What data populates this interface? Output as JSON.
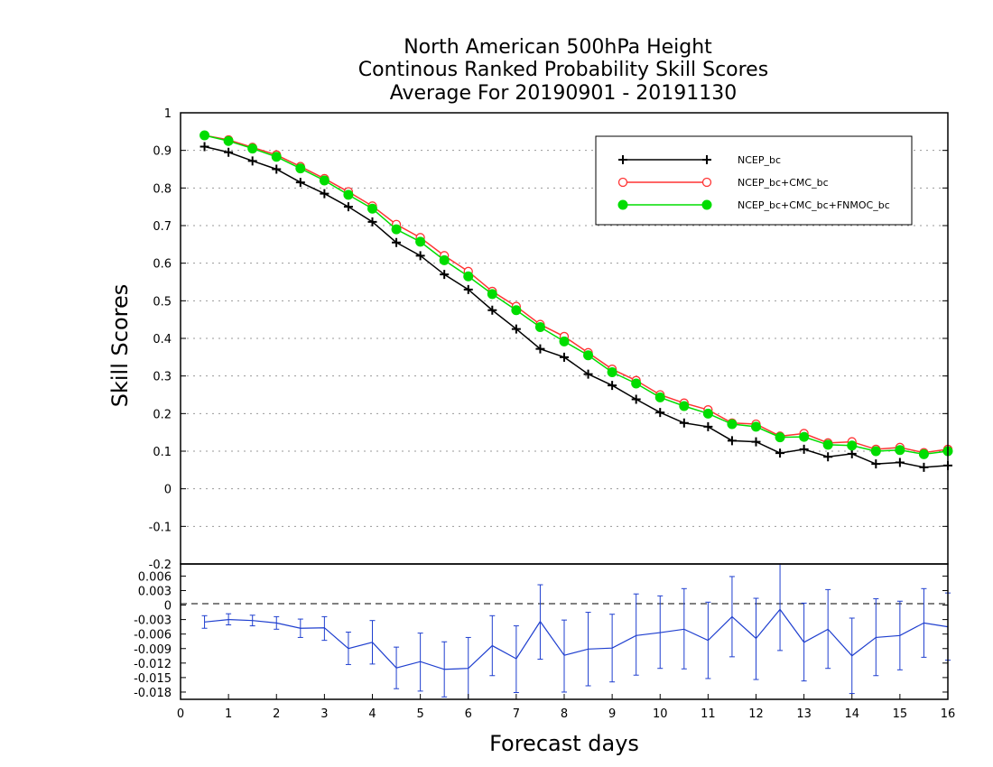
{
  "titles": [
    "North American 500hPa Height",
    "Continous Ranked Probability Skill Scores",
    "Average For 20190901 - 20191130"
  ],
  "chart_data": [
    {
      "type": "line",
      "ylabel": "Skill Scores",
      "ylim": [
        -0.2,
        1.0
      ],
      "yticks": [
        "1",
        "0.9",
        "0.8",
        "0.7",
        "0.6",
        "0.5",
        "0.4",
        "0.3",
        "0.2",
        "0.1",
        "0",
        "-0.1",
        "-0.2"
      ],
      "xlim": [
        0,
        16
      ],
      "grid": true,
      "legend_position": "top-right",
      "x": [
        0.5,
        1,
        1.5,
        2,
        2.5,
        3,
        3.5,
        4,
        4.5,
        5,
        5.5,
        6,
        6.5,
        7,
        7.5,
        8,
        8.5,
        9,
        9.5,
        10,
        10.5,
        11,
        11.5,
        12,
        12.5,
        13,
        13.5,
        14,
        14.5,
        15,
        15.5,
        16
      ],
      "series": [
        {
          "name": "NCEP_bc",
          "color": "#000000",
          "marker": "plus",
          "values": [
            0.91,
            0.895,
            0.872,
            0.85,
            0.815,
            0.785,
            0.75,
            0.71,
            0.655,
            0.62,
            0.57,
            0.53,
            0.475,
            0.425,
            0.372,
            0.35,
            0.305,
            0.275,
            0.238,
            0.203,
            0.175,
            0.165,
            0.128,
            0.125,
            0.095,
            0.105,
            0.085,
            0.093,
            0.066,
            0.07,
            0.057,
            0.062
          ]
        },
        {
          "name": "NCEP_bc+CMC_bc",
          "color": "#ff3333",
          "marker": "open-circle",
          "values": [
            0.94,
            0.928,
            0.908,
            0.888,
            0.857,
            0.825,
            0.79,
            0.752,
            0.703,
            0.668,
            0.62,
            0.578,
            0.525,
            0.485,
            0.437,
            0.405,
            0.362,
            0.318,
            0.288,
            0.25,
            0.228,
            0.21,
            0.175,
            0.172,
            0.14,
            0.147,
            0.122,
            0.125,
            0.105,
            0.11,
            0.096,
            0.105
          ]
        },
        {
          "name": "NCEP_bc+CMC_bc+FNMOC_bc",
          "color": "#00dd00",
          "marker": "filled-circle",
          "values": [
            0.94,
            0.925,
            0.905,
            0.883,
            0.852,
            0.82,
            0.782,
            0.745,
            0.69,
            0.657,
            0.608,
            0.565,
            0.518,
            0.475,
            0.43,
            0.392,
            0.355,
            0.31,
            0.28,
            0.243,
            0.22,
            0.2,
            0.172,
            0.165,
            0.137,
            0.138,
            0.117,
            0.115,
            0.1,
            0.103,
            0.092,
            0.1
          ]
        }
      ]
    },
    {
      "type": "line",
      "subtype": "difference-with-error-bars",
      "xlabel": "Forecast days",
      "ylim": [
        -0.0195,
        0.0085
      ],
      "yticks": [
        "0.006",
        "0.003",
        "0",
        "-0.003",
        "-0.006",
        "-0.009",
        "-0.012",
        "-0.015",
        "-0.018"
      ],
      "xticks": [
        "0",
        "1",
        "2",
        "3",
        "4",
        "5",
        "6",
        "7",
        "8",
        "9",
        "10",
        "11",
        "12",
        "13",
        "14",
        "15",
        "16"
      ],
      "reference_line": 0,
      "x": [
        0.5,
        1,
        1.5,
        2,
        2.5,
        3,
        3.5,
        4,
        4.5,
        5,
        5.5,
        6,
        6.5,
        7,
        7.5,
        8,
        8.5,
        9,
        9.5,
        10,
        10.5,
        11,
        11.5,
        12,
        12.5,
        13,
        13.5,
        14,
        14.5,
        15,
        15.5,
        16
      ],
      "color": "#1f3fcf",
      "values": [
        -0.0035,
        -0.003,
        -0.0032,
        -0.0037,
        -0.0048,
        -0.0047,
        -0.009,
        -0.0077,
        -0.013,
        -0.0117,
        -0.0133,
        -0.0131,
        -0.0084,
        -0.0111,
        -0.0034,
        -0.0104,
        -0.0091,
        -0.0089,
        -0.0063,
        -0.0057,
        -0.005,
        -0.0073,
        -0.0024,
        -0.0069,
        -0.0009,
        -0.0077,
        -0.005,
        -0.0105,
        -0.0067,
        -0.0063,
        -0.0037,
        -0.0045
      ],
      "error_low": [
        -0.0048,
        -0.0041,
        -0.0043,
        -0.005,
        -0.0067,
        -0.0073,
        -0.0123,
        -0.0122,
        -0.0173,
        -0.0178,
        -0.019,
        -0.0195,
        -0.0146,
        -0.0181,
        -0.0112,
        -0.018,
        -0.0167,
        -0.0159,
        -0.0145,
        -0.0131,
        -0.0132,
        -0.0152,
        -0.0107,
        -0.0154,
        -0.0094,
        -0.0157,
        -0.0131,
        -0.0183,
        -0.0146,
        -0.0134,
        -0.0108,
        -0.0114
      ],
      "error_high": [
        -0.0022,
        -0.0018,
        -0.0021,
        -0.0024,
        -0.0029,
        -0.0024,
        -0.0056,
        -0.0032,
        -0.0087,
        -0.0058,
        -0.0076,
        -0.0067,
        -0.0022,
        -0.0043,
        0.0042,
        -0.0031,
        -0.0015,
        -0.0019,
        0.0023,
        0.0019,
        0.0034,
        0.0006,
        0.0059,
        0.0014,
        0.0085,
        0.0004,
        0.0032,
        -0.0027,
        0.0013,
        0.0008,
        0.0034,
        0.0025
      ]
    }
  ]
}
